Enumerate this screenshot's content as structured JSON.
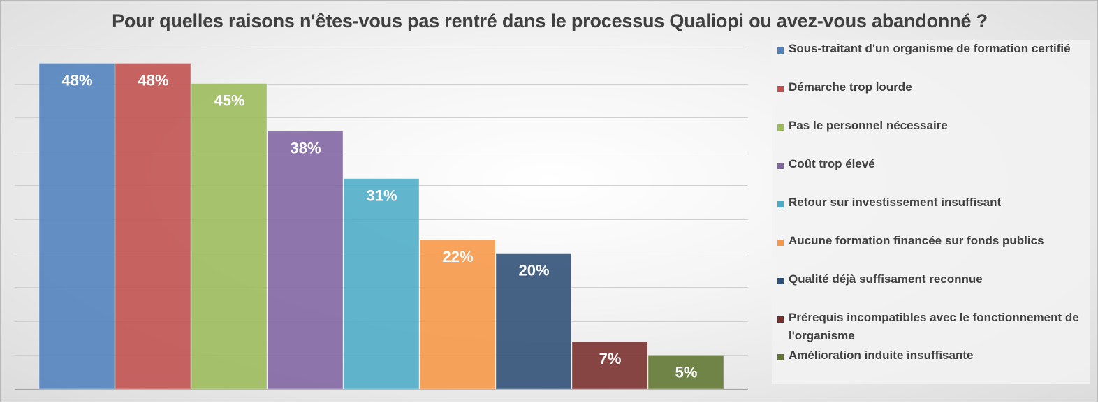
{
  "chart_data": {
    "type": "bar",
    "title": "Pour quelles raisons n'êtes-vous pas rentré dans le processus Qualiopi ou avez-vous abandonné ?",
    "ylim": [
      0,
      50
    ],
    "grid": true,
    "legend_position": "right",
    "value_format": "percent",
    "series": [
      {
        "name": "Sous-traitant d'un organisme de formation certifié",
        "value": 48,
        "label": "48%",
        "color": "#4F81BD"
      },
      {
        "name": "Démarche trop lourde",
        "value": 48,
        "label": "48%",
        "color": "#C0504D"
      },
      {
        "name": "Pas le personnel nécessaire",
        "value": 45,
        "label": "45%",
        "color": "#9BBB59"
      },
      {
        "name": "Coût trop élevé",
        "value": 38,
        "label": "38%",
        "color": "#8064A2"
      },
      {
        "name": "Retour sur investissement insuffisant",
        "value": 31,
        "label": "31%",
        "color": "#4BACC6"
      },
      {
        "name": "Aucune formation financée sur fonds publics",
        "value": 22,
        "label": "22%",
        "color": "#F79646"
      },
      {
        "name": "Qualité déjà suffisament reconnue",
        "value": 20,
        "label": "20%",
        "color": "#2C4D75"
      },
      {
        "name": "Prérequis incompatibles avec le fonctionnement de l'organisme",
        "value": 7,
        "label": "7%",
        "color": "#772C2A"
      },
      {
        "name": "Amélioration induite insuffisante",
        "value": 5,
        "label": "5%",
        "color": "#5F7530"
      }
    ]
  }
}
